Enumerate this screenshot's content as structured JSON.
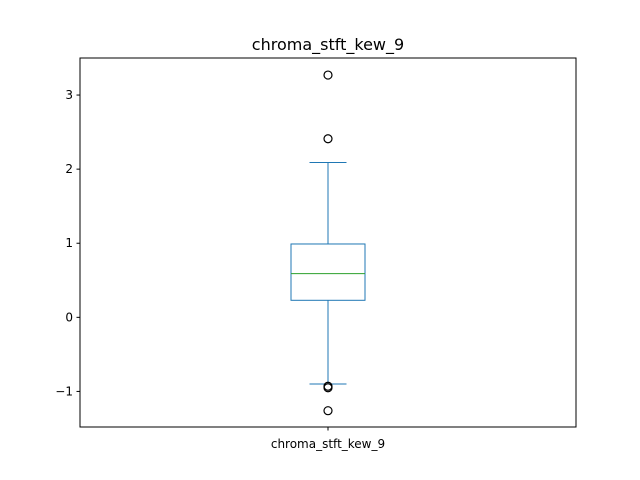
{
  "chart_data": {
    "type": "box",
    "title": "chroma_stft_kew_9",
    "categories": [
      "chroma_stft_kew_9"
    ],
    "ylim": [
      -1.48,
      3.5
    ],
    "yticks": [
      -1,
      0,
      1,
      2,
      3
    ],
    "ytick_labels": [
      "−1",
      "0",
      "1",
      "2",
      "3"
    ],
    "grid": false,
    "boxes": [
      {
        "name": "chroma_stft_kew_9",
        "whisker_low": -0.9,
        "q1": 0.23,
        "median": 0.59,
        "q3": 0.99,
        "whisker_high": 2.09,
        "outliers": [
          3.27,
          2.41,
          -0.93,
          -0.95,
          -1.26
        ]
      }
    ],
    "colors": {
      "box": "#1f77b4",
      "median": "#2ca02c",
      "outlier": "#000000"
    }
  }
}
